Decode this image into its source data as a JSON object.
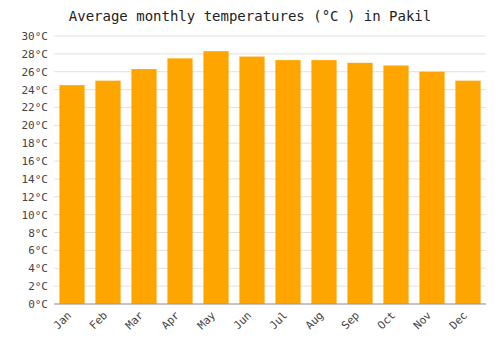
{
  "chart_data": {
    "type": "bar",
    "title": "Average monthly temperatures (°C ) in Pakil",
    "categories": [
      "Jan",
      "Feb",
      "Mar",
      "Apr",
      "May",
      "Jun",
      "Jul",
      "Aug",
      "Sep",
      "Oct",
      "Nov",
      "Dec"
    ],
    "values": [
      24.5,
      25.0,
      26.3,
      27.5,
      28.3,
      27.7,
      27.3,
      27.3,
      27.0,
      26.7,
      26.0,
      25.0
    ],
    "color": "#FFA500",
    "ylim": [
      0,
      30
    ],
    "yticks": [
      {
        "value": 0,
        "label": "0°C"
      },
      {
        "value": 2,
        "label": "2°C"
      },
      {
        "value": 4,
        "label": "4°C"
      },
      {
        "value": 6,
        "label": "6°C"
      },
      {
        "value": 8,
        "label": "8°C"
      },
      {
        "value": 10,
        "label": "10°C"
      },
      {
        "value": 12,
        "label": "12°C"
      },
      {
        "value": 14,
        "label": "14°C"
      },
      {
        "value": 16,
        "label": "16°C"
      },
      {
        "value": 18,
        "label": "18°C"
      },
      {
        "value": 20,
        "label": "20°C"
      },
      {
        "value": 22,
        "label": "22°C"
      },
      {
        "value": 24,
        "label": "24°C"
      },
      {
        "value": 26,
        "label": "26°C"
      },
      {
        "value": 28,
        "label": "28°C"
      },
      {
        "value": 30,
        "label": "30°C"
      }
    ],
    "grid": true
  }
}
